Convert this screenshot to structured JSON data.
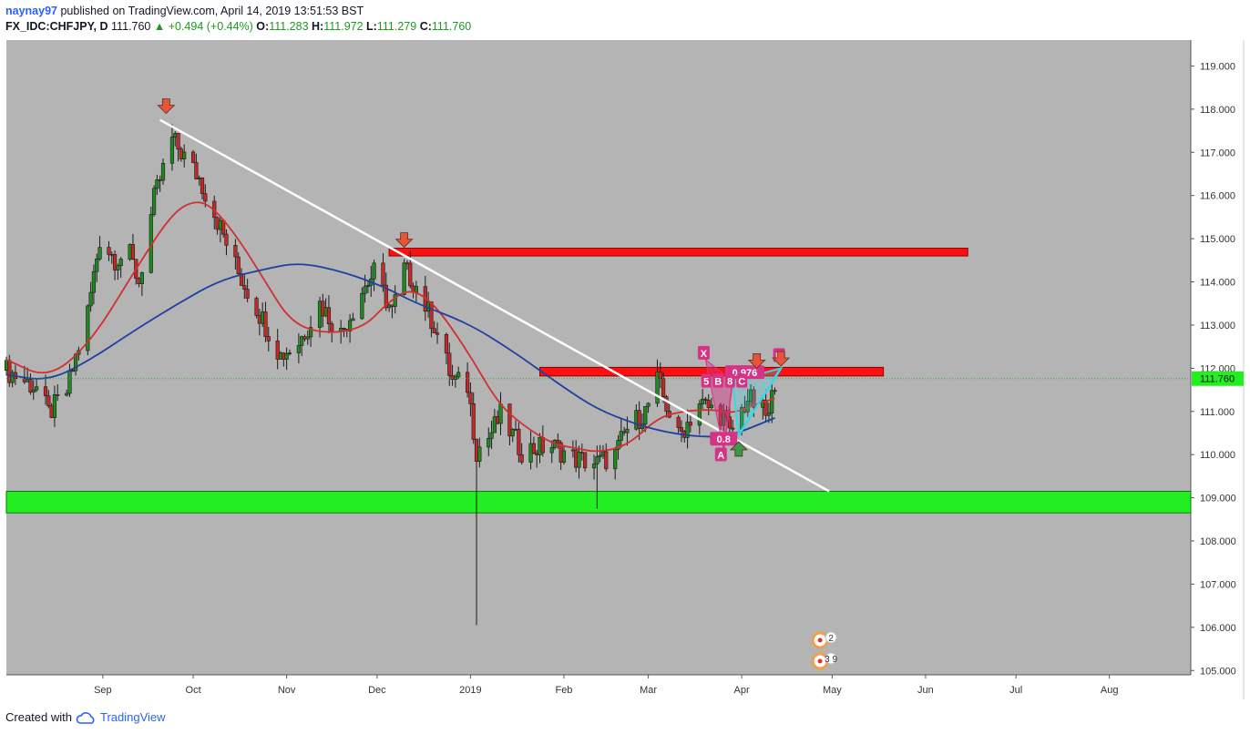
{
  "header": {
    "author": "naynay97",
    "published": "published on TradingView.com, April 14, 2019 13:51:53 BST",
    "symbol": "FX_IDC:CHFJPY, D",
    "last": "111.760",
    "change": "▲ +0.494 (+0.44%)",
    "o_label": "O:",
    "o_value": "111.283",
    "h_label": "H:",
    "h_value": "111.972",
    "l_label": "L:",
    "l_value": "111.279",
    "c_label": "C:",
    "c_value": "111.760"
  },
  "footer": {
    "created": "Created with",
    "brand": "TradingView"
  },
  "colors": {
    "background": "#b4b4b4",
    "up": "#1e8a1e",
    "down": "#c62828",
    "ema_fast": "#d32f2f",
    "ema_slow": "#1e40a0",
    "trendline": "#ffffff",
    "resistance": "#ff1010",
    "support": "#22ee22",
    "pattern": "#d63384",
    "pattern_leg": "#39d6e6",
    "arrow_down": "#e8543a",
    "arrow_up": "#3a9a4a"
  },
  "chart_data": {
    "type": "candlestick",
    "symbol": "FX_IDC:CHFJPY",
    "timeframe": "D",
    "ylim": [
      104.9,
      119.6
    ],
    "y_ticks": [
      "119.000",
      "118.000",
      "117.000",
      "116.000",
      "115.000",
      "114.000",
      "113.000",
      "112.000",
      "111.000",
      "110.000",
      "109.000",
      "108.000",
      "107.000",
      "106.000",
      "105.000"
    ],
    "x_ticks": [
      "Sep",
      "Oct",
      "Nov",
      "Dec",
      "2019",
      "Feb",
      "Mar",
      "Apr",
      "May",
      "Jun",
      "Jul",
      "Aug"
    ],
    "x_tick_dates": [
      "2018-09-01",
      "2018-10-01",
      "2018-11-01",
      "2018-12-01",
      "2019-01-01",
      "2019-02-01",
      "2019-03-01",
      "2019-04-01",
      "2019-05-01",
      "2019-06-01",
      "2019-07-01",
      "2019-08-01"
    ],
    "x_range": [
      "2018-07-31",
      "2019-08-28"
    ],
    "last_price_label": "111.760",
    "last_price": 111.76,
    "anchors": [
      [
        "2018-07-31",
        111.95
      ],
      [
        "2018-08-10",
        111.55
      ],
      [
        "2018-08-14",
        110.95
      ],
      [
        "2018-08-20",
        111.45
      ],
      [
        "2018-08-27",
        113.3
      ],
      [
        "2018-08-31",
        115.0
      ],
      [
        "2018-09-05",
        114.55
      ],
      [
        "2018-09-10",
        114.6
      ],
      [
        "2018-09-13",
        114.0
      ],
      [
        "2018-09-18",
        115.9
      ],
      [
        "2018-09-24",
        117.3
      ],
      [
        "2018-10-03",
        116.4
      ],
      [
        "2018-10-08",
        115.6
      ],
      [
        "2018-10-16",
        114.2
      ],
      [
        "2018-10-25",
        113.0
      ],
      [
        "2018-10-30",
        112.3
      ],
      [
        "2018-11-05",
        112.6
      ],
      [
        "2018-11-12",
        113.5
      ],
      [
        "2018-11-19",
        112.8
      ],
      [
        "2018-11-26",
        113.8
      ],
      [
        "2018-11-30",
        114.2
      ],
      [
        "2018-12-06",
        113.3
      ],
      [
        "2018-12-10",
        114.3
      ],
      [
        "2018-12-14",
        113.9
      ],
      [
        "2018-12-20",
        113.0
      ],
      [
        "2018-12-26",
        111.7
      ],
      [
        "2018-12-31",
        111.6
      ],
      [
        "2019-01-03",
        110.1
      ],
      [
        "2019-01-07",
        110.4
      ],
      [
        "2019-01-11",
        110.9
      ],
      [
        "2019-01-18",
        110.1
      ],
      [
        "2019-01-28",
        110.2
      ],
      [
        "2019-02-05",
        109.9
      ],
      [
        "2019-02-12",
        109.8
      ],
      [
        "2019-02-18",
        110.0
      ],
      [
        "2019-02-22",
        110.6
      ],
      [
        "2019-02-28",
        111.0
      ],
      [
        "2019-03-04",
        111.7
      ],
      [
        "2019-03-11",
        110.4
      ],
      [
        "2019-03-18",
        111.2
      ],
      [
        "2019-03-26",
        110.9
      ],
      [
        "2019-03-28",
        110.45
      ],
      [
        "2019-04-03",
        111.3
      ],
      [
        "2019-04-08",
        111.0
      ],
      [
        "2019-04-10",
        110.85
      ],
      [
        "2019-04-12",
        111.76
      ]
    ],
    "wick_extremes": [
      {
        "date": "2018-09-24",
        "high": 117.65
      },
      {
        "date": "2019-01-03",
        "low": 106.05
      },
      {
        "date": "2019-02-12",
        "low": 108.75
      },
      {
        "date": "2019-03-04",
        "high": 112.2
      }
    ],
    "series": [
      {
        "type": "line",
        "points": [
          [
            "2018-07-31",
            112.2
          ],
          [
            "2018-08-14",
            111.75
          ],
          [
            "2018-08-28",
            112.6
          ],
          [
            "2018-09-12",
            114.3
          ],
          [
            "2018-09-24",
            115.6
          ],
          [
            "2018-10-02",
            115.9
          ],
          [
            "2018-10-08",
            115.7
          ],
          [
            "2018-10-16",
            115.0
          ],
          [
            "2018-10-25",
            114.0
          ],
          [
            "2018-11-02",
            113.1
          ],
          [
            "2018-11-12",
            112.8
          ],
          [
            "2018-11-26",
            112.9
          ],
          [
            "2018-12-05",
            113.55
          ],
          [
            "2018-12-12",
            113.85
          ],
          [
            "2018-12-20",
            113.5
          ],
          [
            "2018-12-31",
            112.4
          ],
          [
            "2019-01-10",
            111.2
          ],
          [
            "2019-01-18",
            110.7
          ],
          [
            "2019-01-28",
            110.25
          ],
          [
            "2019-02-05",
            110.15
          ],
          [
            "2019-02-12",
            110.05
          ],
          [
            "2019-02-22",
            110.2
          ],
          [
            "2019-03-04",
            110.85
          ],
          [
            "2019-03-12",
            111.0
          ],
          [
            "2019-03-22",
            111.05
          ],
          [
            "2019-03-29",
            110.95
          ],
          [
            "2019-04-05",
            111.15
          ],
          [
            "2019-04-12",
            111.3
          ]
        ]
      },
      {
        "type": "line",
        "points": [
          [
            "2018-07-31",
            111.85
          ],
          [
            "2018-08-14",
            111.7
          ],
          [
            "2018-08-28",
            112.2
          ],
          [
            "2018-09-12",
            112.9
          ],
          [
            "2018-09-26",
            113.5
          ],
          [
            "2018-10-10",
            114.05
          ],
          [
            "2018-10-25",
            114.3
          ],
          [
            "2018-11-05",
            114.45
          ],
          [
            "2018-11-19",
            114.25
          ],
          [
            "2018-12-03",
            113.9
          ],
          [
            "2018-12-14",
            113.5
          ],
          [
            "2018-12-31",
            113.05
          ],
          [
            "2019-01-15",
            112.4
          ],
          [
            "2019-01-31",
            111.6
          ],
          [
            "2019-02-12",
            111.05
          ],
          [
            "2019-02-25",
            110.7
          ],
          [
            "2019-03-08",
            110.5
          ],
          [
            "2019-03-20",
            110.4
          ],
          [
            "2019-03-29",
            110.45
          ],
          [
            "2019-04-12",
            110.85
          ]
        ]
      }
    ],
    "trendline": [
      [
        "2018-09-20",
        117.75
      ],
      [
        "2019-04-30",
        109.15
      ]
    ],
    "zones": [
      {
        "from": "2018-12-05",
        "to": "2019-06-15",
        "low": 114.6,
        "high": 114.78
      },
      {
        "from": "2019-01-24",
        "to": "2019-05-18",
        "low": 111.82,
        "high": 112.02
      },
      {
        "from": "2018-07-31",
        "to": "2019-08-28",
        "low": 108.65,
        "high": 109.15
      }
    ],
    "arrows": [
      {
        "date": "2018-09-22",
        "price": 117.9,
        "dir": "down"
      },
      {
        "date": "2018-12-10",
        "price": 114.8,
        "dir": "down"
      },
      {
        "date": "2019-04-06",
        "price": 112.0,
        "dir": "down"
      },
      {
        "date": "2019-04-14",
        "price": 112.05,
        "dir": "down"
      },
      {
        "date": "2019-03-31",
        "price": 110.3,
        "dir": "up"
      }
    ],
    "harmonic": {
      "points": [
        {
          "label": "X",
          "date": "2019-03-20",
          "price": 112.2
        },
        {
          "label": "A",
          "date": "2019-03-26",
          "price": 110.1
        },
        {
          "label": "B",
          "date": "2019-03-29",
          "price": 111.7
        },
        {
          "label": "C",
          "date": "2019-03-31",
          "price": 110.45
        },
        {
          "label": "D",
          "date": "2019-04-14",
          "price": 112.0
        }
      ],
      "ratios": [
        {
          "text": "0.976",
          "date": "2019-04-02",
          "price": 111.9
        },
        {
          "text": "0.8",
          "date": "2019-03-26",
          "price": 110.4
        }
      ],
      "tags": [
        "5",
        "B",
        "8",
        "C"
      ]
    },
    "event_markers": [
      {
        "date": "2019-04-27",
        "count": "2"
      },
      {
        "date": "2019-04-27",
        "count": "3 9"
      }
    ]
  }
}
